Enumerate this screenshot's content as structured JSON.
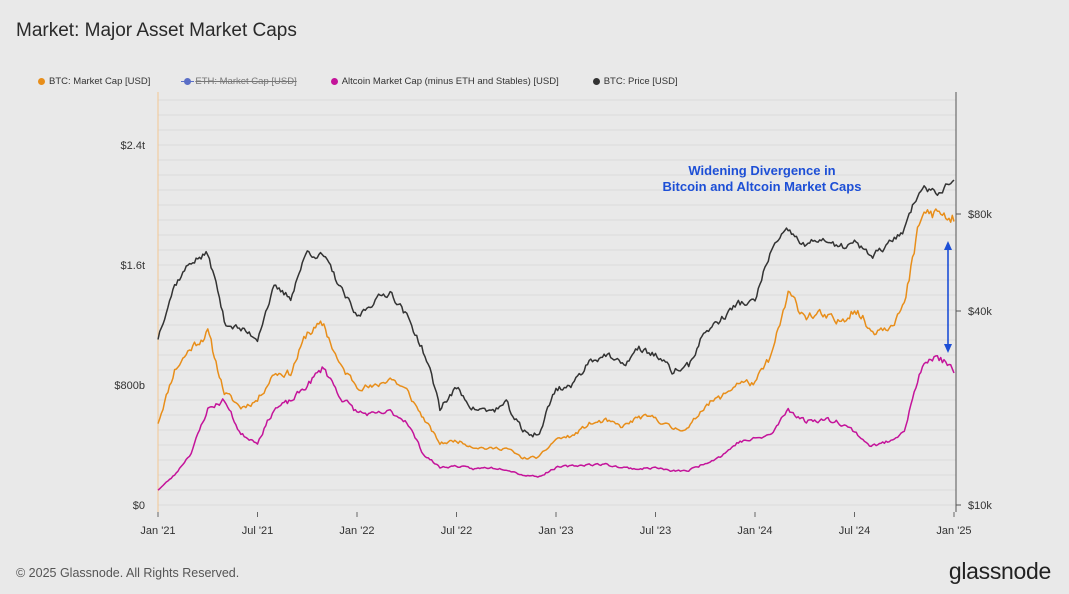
{
  "title": "Market: Major Asset Market Caps",
  "legend": [
    {
      "label": "BTC: Market Cap [USD]",
      "color": "#e88e1a",
      "enabled": true
    },
    {
      "label": "ETH: Market Cap [USD]",
      "color": "#5b6fc7",
      "enabled": false
    },
    {
      "label": "Altcoin Market Cap (minus ETH and Stables) [USD]",
      "color": "#c4149a",
      "enabled": true
    },
    {
      "label": "BTC: Price [USD]",
      "color": "#333333",
      "enabled": true
    }
  ],
  "annotation": {
    "line1": "Widening Divergence in",
    "line2": "Bitcoin and Altcoin Market Caps",
    "color": "#1d4fd6"
  },
  "footer": "© 2025 Glassnode. All Rights Reserved.",
  "logo": "glassnode",
  "chart_data": {
    "type": "line",
    "title": "Market: Major Asset Market Caps",
    "x": [
      "2021-01",
      "2021-02",
      "2021-03",
      "2021-04",
      "2021-05",
      "2021-06",
      "2021-07",
      "2021-08",
      "2021-09",
      "2021-10",
      "2021-11",
      "2021-12",
      "2022-01",
      "2022-02",
      "2022-03",
      "2022-04",
      "2022-05",
      "2022-06",
      "2022-07",
      "2022-08",
      "2022-09",
      "2022-10",
      "2022-11",
      "2022-12",
      "2023-01",
      "2023-02",
      "2023-03",
      "2023-04",
      "2023-05",
      "2023-06",
      "2023-07",
      "2023-08",
      "2023-09",
      "2023-10",
      "2023-11",
      "2023-12",
      "2024-01",
      "2024-02",
      "2024-03",
      "2024-04",
      "2024-05",
      "2024-06",
      "2024-07",
      "2024-08",
      "2024-09",
      "2024-10",
      "2024-11",
      "2024-12",
      "2025-01"
    ],
    "x_ticks": [
      "Jan '21",
      "Jul '21",
      "Jan '22",
      "Jul '22",
      "Jan '23",
      "Jul '23",
      "Jan '24",
      "Jul '24",
      "Jan '25"
    ],
    "y_left": {
      "ticks": [
        "$0",
        "$800b",
        "$1.6t",
        "$2.4t"
      ],
      "tick_values": [
        0,
        800,
        1600,
        2400
      ],
      "range": [
        0,
        2700
      ],
      "unit": "billions USD"
    },
    "y_right": {
      "ticks": [
        "$10k",
        "$40k",
        "$80k"
      ],
      "tick_values": [
        10000,
        40000,
        80000
      ],
      "scale": "log",
      "range": [
        10000,
        110000
      ]
    },
    "series": [
      {
        "name": "BTC: Market Cap [USD]",
        "color": "#e88e1a",
        "axis": "left",
        "values": [
          550,
          900,
          1050,
          1150,
          750,
          650,
          700,
          880,
          880,
          1150,
          1200,
          920,
          800,
          780,
          850,
          760,
          580,
          410,
          430,
          390,
          375,
          380,
          310,
          320,
          440,
          460,
          540,
          560,
          520,
          585,
          580,
          510,
          510,
          670,
          720,
          820,
          810,
          1000,
          1400,
          1270,
          1260,
          1210,
          1320,
          1160,
          1200,
          1320,
          1920,
          1950,
          1890
        ]
      },
      {
        "name": "Altcoin Market Cap (minus ETH and Stables) [USD]",
        "color": "#c4149a",
        "axis": "left",
        "values": [
          100,
          200,
          350,
          640,
          700,
          470,
          420,
          640,
          690,
          800,
          920,
          720,
          620,
          600,
          620,
          560,
          340,
          250,
          260,
          240,
          250,
          240,
          200,
          190,
          250,
          260,
          270,
          270,
          250,
          240,
          250,
          225,
          230,
          280,
          330,
          420,
          440,
          470,
          640,
          560,
          570,
          560,
          490,
          390,
          420,
          500,
          900,
          1000,
          880
        ]
      },
      {
        "name": "BTC: Price [USD]",
        "color": "#333333",
        "axis": "right",
        "values": [
          33000,
          48000,
          57000,
          60000,
          37000,
          35000,
          33000,
          47000,
          44000,
          61000,
          59000,
          47000,
          38000,
          43000,
          46000,
          38500,
          30000,
          20000,
          23000,
          20000,
          19500,
          20500,
          16800,
          16600,
          23000,
          23500,
          28000,
          29300,
          27000,
          30500,
          29300,
          26000,
          27000,
          34500,
          37800,
          42300,
          42500,
          62000,
          71000,
          63500,
          67500,
          62500,
          65000,
          59000,
          63500,
          72000,
          97000,
          94000,
          102000
        ]
      }
    ]
  }
}
